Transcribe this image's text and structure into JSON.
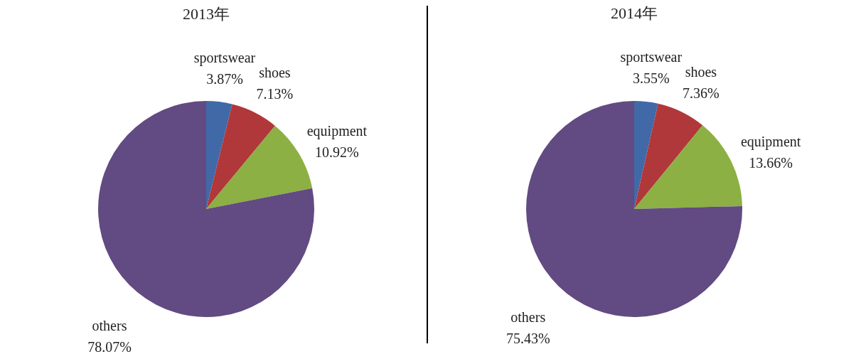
{
  "chart_data": [
    {
      "type": "pie",
      "title": "2013年",
      "categories": [
        "sportswear",
        "shoes",
        "equipment",
        "others"
      ],
      "values": [
        3.87,
        7.13,
        10.92,
        78.07
      ],
      "value_labels": [
        "3.87%",
        "7.13%",
        "10.92%",
        "78.07%"
      ],
      "colors": [
        "#4169a8",
        "#b0383a",
        "#8cb043",
        "#624a82"
      ]
    },
    {
      "type": "pie",
      "title": "2014年",
      "categories": [
        "sportswear",
        "shoes",
        "equipment",
        "others"
      ],
      "values": [
        3.55,
        7.36,
        13.66,
        75.43
      ],
      "value_labels": [
        "3.55%",
        "7.36%",
        "13.66%",
        "75.43%"
      ],
      "colors": [
        "#4169a8",
        "#b0383a",
        "#8cb043",
        "#624a82"
      ]
    }
  ]
}
